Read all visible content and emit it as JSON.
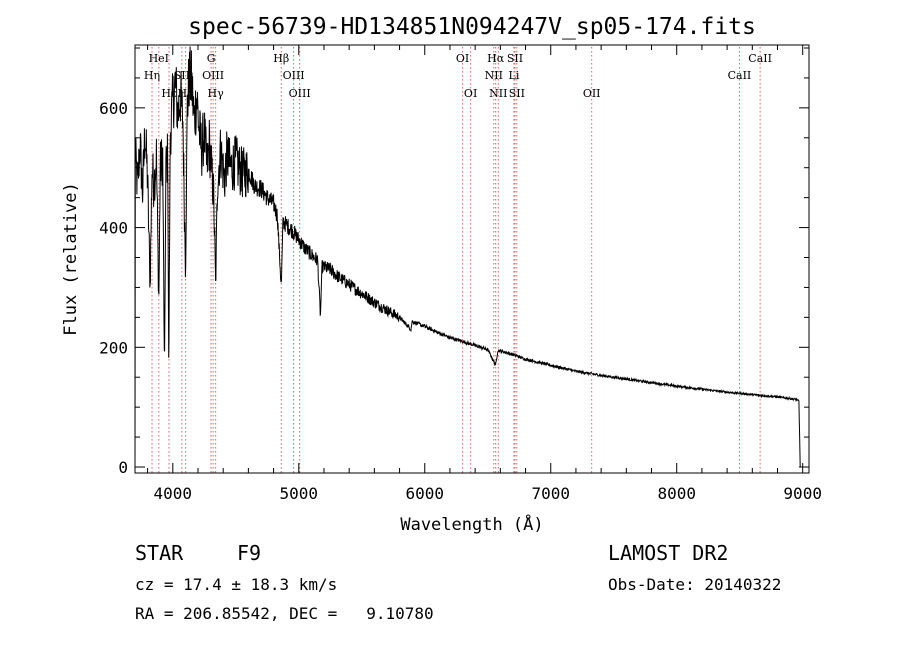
{
  "chart_data": {
    "type": "line",
    "title": "spec-56739-HD134851N094247V_sp05-174.fits",
    "xlabel": "Wavelength (Å)",
    "ylabel": "Flux (relative)",
    "xlim": [
      3700,
      9050
    ],
    "ylim": [
      -10,
      705
    ],
    "x_ticks": [
      4000,
      5000,
      6000,
      7000,
      8000,
      9000
    ],
    "y_ticks": [
      0,
      200,
      400,
      600
    ],
    "grid": false,
    "spectrum_color": "#000000",
    "line_marker_color": "#e06060",
    "spectrum_anchors": [
      [
        3700,
        0
      ],
      [
        3702,
        520
      ],
      [
        3720,
        470
      ],
      [
        3740,
        540
      ],
      [
        3760,
        460
      ],
      [
        3780,
        560
      ],
      [
        3800,
        480
      ],
      [
        3820,
        300
      ],
      [
        3835,
        500
      ],
      [
        3850,
        470
      ],
      [
        3870,
        520
      ],
      [
        3889,
        270
      ],
      [
        3900,
        500
      ],
      [
        3920,
        520
      ],
      [
        3934,
        145
      ],
      [
        3945,
        500
      ],
      [
        3960,
        520
      ],
      [
        3968,
        150
      ],
      [
        3980,
        560
      ],
      [
        4000,
        610
      ],
      [
        4020,
        640
      ],
      [
        4040,
        590
      ],
      [
        4060,
        620
      ],
      [
        4080,
        580
      ],
      [
        4101,
        330
      ],
      [
        4115,
        600
      ],
      [
        4130,
        650
      ],
      [
        4150,
        640
      ],
      [
        4170,
        580
      ],
      [
        4190,
        620
      ],
      [
        4210,
        560
      ],
      [
        4230,
        530
      ],
      [
        4250,
        560
      ],
      [
        4270,
        500
      ],
      [
        4290,
        540
      ],
      [
        4310,
        490
      ],
      [
        4325,
        450
      ],
      [
        4340,
        300
      ],
      [
        4355,
        480
      ],
      [
        4380,
        530
      ],
      [
        4410,
        480
      ],
      [
        4430,
        520
      ],
      [
        4460,
        500
      ],
      [
        4500,
        510
      ],
      [
        4550,
        490
      ],
      [
        4600,
        495
      ],
      [
        4650,
        470
      ],
      [
        4700,
        465
      ],
      [
        4750,
        450
      ],
      [
        4800,
        440
      ],
      [
        4830,
        420
      ],
      [
        4861,
        300
      ],
      [
        4875,
        410
      ],
      [
        4900,
        405
      ],
      [
        4950,
        395
      ],
      [
        5000,
        380
      ],
      [
        5050,
        365
      ],
      [
        5100,
        355
      ],
      [
        5150,
        345
      ],
      [
        5172,
        250
      ],
      [
        5185,
        335
      ],
      [
        5250,
        330
      ],
      [
        5300,
        320
      ],
      [
        5400,
        305
      ],
      [
        5500,
        290
      ],
      [
        5600,
        275
      ],
      [
        5700,
        262
      ],
      [
        5800,
        250
      ],
      [
        5890,
        230
      ],
      [
        5900,
        243
      ],
      [
        6000,
        235
      ],
      [
        6100,
        225
      ],
      [
        6200,
        216
      ],
      [
        6300,
        210
      ],
      [
        6400,
        203
      ],
      [
        6500,
        196
      ],
      [
        6563,
        170
      ],
      [
        6580,
        195
      ],
      [
        6700,
        188
      ],
      [
        6800,
        180
      ],
      [
        7000,
        170
      ],
      [
        7200,
        160
      ],
      [
        7400,
        153
      ],
      [
        7600,
        147
      ],
      [
        7800,
        141
      ],
      [
        8000,
        135
      ],
      [
        8200,
        130
      ],
      [
        8400,
        125
      ],
      [
        8600,
        121
      ],
      [
        8800,
        117
      ],
      [
        8950,
        113
      ],
      [
        8970,
        110
      ],
      [
        8980,
        0
      ]
    ],
    "lines": [
      {
        "wl": 3835,
        "label": "Hη",
        "row": 2
      },
      {
        "wl": 3889,
        "label": "HeI",
        "row": 1
      },
      {
        "wl": 3970,
        "label": "Hε",
        "row": 3
      },
      {
        "wl": 4072,
        "label": "SII",
        "row": 2
      },
      {
        "wl": 4102,
        "label": "Hδ",
        "row": 3
      },
      {
        "wl": 4304,
        "label": "G",
        "row": 1
      },
      {
        "wl": 4320,
        "label": "OIII",
        "row": 2
      },
      {
        "wl": 4340,
        "label": "Hγ",
        "row": 3
      },
      {
        "wl": 4861,
        "label": "Hβ",
        "row": 1
      },
      {
        "wl": 4959,
        "label": "OIII",
        "row": 2
      },
      {
        "wl": 5007,
        "label": "OIII",
        "row": 3
      },
      {
        "wl": 6300,
        "label": "OI",
        "row": 1
      },
      {
        "wl": 6364,
        "label": "OI",
        "row": 3
      },
      {
        "wl": 6548,
        "label": "NII",
        "row": 2
      },
      {
        "wl": 6563,
        "label": "Hα",
        "row": 1
      },
      {
        "wl": 6584,
        "label": "NII",
        "row": 3
      },
      {
        "wl": 6708,
        "label": "Li",
        "row": 2
      },
      {
        "wl": 6716,
        "label": "SII",
        "row": 1
      },
      {
        "wl": 6731,
        "label": "SII",
        "row": 3
      },
      {
        "wl": 7325,
        "label": "OII",
        "row": 3
      },
      {
        "wl": 8498,
        "label": "CaII",
        "row": 2
      },
      {
        "wl": 8662,
        "label": "CaII",
        "row": 1
      }
    ]
  },
  "info": {
    "object_class": "STAR",
    "subclass": "F9",
    "survey": "LAMOST DR2",
    "redshift": "cz = 17.4 ± 18.3 km/s",
    "obs_date": "Obs-Date: 20140322",
    "coords": "RA = 206.85542, DEC =   9.10780"
  }
}
